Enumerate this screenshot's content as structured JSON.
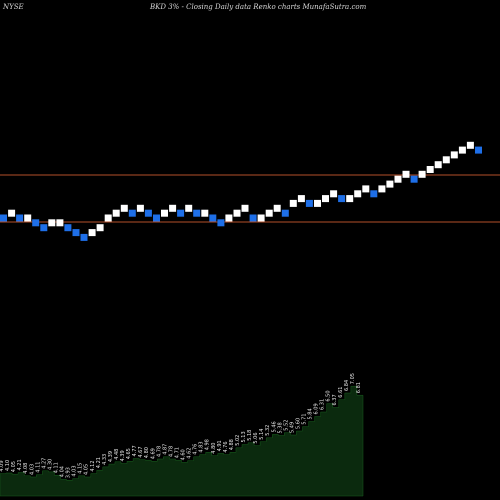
{
  "header": {
    "exchange": "NYSE",
    "title": "BKD 3% -  Closing Daily data  Renko  charts MunafaSutra.com"
  },
  "chart_data": {
    "type": "renko",
    "title": "BKD 3% -  Closing Daily data  Renko  charts MunafaSutra.com",
    "colors": {
      "up": "#ffffff",
      "down": "#1e6fe8",
      "lines": "#b5502a",
      "volume": "#0b2a0e"
    },
    "bricks": [
      {
        "dir": "down",
        "level": 0
      },
      {
        "dir": "up",
        "level": 1
      },
      {
        "dir": "down",
        "level": 0
      },
      {
        "dir": "up",
        "level": 0
      },
      {
        "dir": "down",
        "level": -1
      },
      {
        "dir": "down",
        "level": -2
      },
      {
        "dir": "up",
        "level": -1
      },
      {
        "dir": "up",
        "level": -1
      },
      {
        "dir": "down",
        "level": -2
      },
      {
        "dir": "down",
        "level": -3
      },
      {
        "dir": "down",
        "level": -4
      },
      {
        "dir": "up",
        "level": -3
      },
      {
        "dir": "up",
        "level": -2
      },
      {
        "dir": "up",
        "level": 0
      },
      {
        "dir": "up",
        "level": 1
      },
      {
        "dir": "up",
        "level": 2
      },
      {
        "dir": "down",
        "level": 1
      },
      {
        "dir": "up",
        "level": 2
      },
      {
        "dir": "down",
        "level": 1
      },
      {
        "dir": "down",
        "level": 0
      },
      {
        "dir": "up",
        "level": 1
      },
      {
        "dir": "up",
        "level": 2
      },
      {
        "dir": "down",
        "level": 1
      },
      {
        "dir": "up",
        "level": 2
      },
      {
        "dir": "down",
        "level": 1
      },
      {
        "dir": "up",
        "level": 1
      },
      {
        "dir": "down",
        "level": 0
      },
      {
        "dir": "down",
        "level": -1
      },
      {
        "dir": "up",
        "level": 0
      },
      {
        "dir": "up",
        "level": 1
      },
      {
        "dir": "up",
        "level": 2
      },
      {
        "dir": "down",
        "level": 0
      },
      {
        "dir": "up",
        "level": 0
      },
      {
        "dir": "up",
        "level": 1
      },
      {
        "dir": "up",
        "level": 2
      },
      {
        "dir": "down",
        "level": 1
      },
      {
        "dir": "up",
        "level": 3
      },
      {
        "dir": "up",
        "level": 4
      },
      {
        "dir": "down",
        "level": 3
      },
      {
        "dir": "up",
        "level": 3
      },
      {
        "dir": "up",
        "level": 4
      },
      {
        "dir": "up",
        "level": 5
      },
      {
        "dir": "down",
        "level": 4
      },
      {
        "dir": "up",
        "level": 4
      },
      {
        "dir": "up",
        "level": 5
      },
      {
        "dir": "up",
        "level": 6
      },
      {
        "dir": "down",
        "level": 5
      },
      {
        "dir": "up",
        "level": 6
      },
      {
        "dir": "up",
        "level": 7
      },
      {
        "dir": "up",
        "level": 8
      },
      {
        "dir": "up",
        "level": 9
      },
      {
        "dir": "down",
        "level": 8
      },
      {
        "dir": "up",
        "level": 9
      },
      {
        "dir": "up",
        "level": 10
      },
      {
        "dir": "up",
        "level": 11
      },
      {
        "dir": "up",
        "level": 12
      },
      {
        "dir": "up",
        "level": 13
      },
      {
        "dir": "up",
        "level": 14
      },
      {
        "dir": "up",
        "level": 15
      },
      {
        "dir": "down",
        "level": 14
      }
    ],
    "lines": [
      {
        "level": 11
      },
      {
        "level": 0
      }
    ],
    "volume": [
      {
        "label": "4.09",
        "value": 40
      },
      {
        "label": "4.10",
        "value": 41
      },
      {
        "label": "4.05",
        "value": 39
      },
      {
        "label": "4.21",
        "value": 42
      },
      {
        "label": "4.08",
        "value": 36
      },
      {
        "label": "4.03",
        "value": 34
      },
      {
        "label": "4.11",
        "value": 38
      },
      {
        "label": "4.27",
        "value": 45
      },
      {
        "label": "4.30",
        "value": 43
      },
      {
        "label": "4.11",
        "value": 37
      },
      {
        "label": "4.04",
        "value": 30
      },
      {
        "label": "3.93",
        "value": 28
      },
      {
        "label": "4.03",
        "value": 31
      },
      {
        "label": "4.15",
        "value": 36
      },
      {
        "label": "4.05",
        "value": 34
      },
      {
        "label": "4.12",
        "value": 40
      },
      {
        "label": "4.21",
        "value": 46
      },
      {
        "label": "4.33",
        "value": 52
      },
      {
        "label": "4.39",
        "value": 57
      },
      {
        "label": "4.48",
        "value": 61
      },
      {
        "label": "4.39",
        "value": 58
      },
      {
        "label": "4.65",
        "value": 62
      },
      {
        "label": "4.77",
        "value": 67
      },
      {
        "label": "4.67",
        "value": 65
      },
      {
        "label": "4.80",
        "value": 64
      },
      {
        "label": "4.69",
        "value": 62
      },
      {
        "label": "4.78",
        "value": 66
      },
      {
        "label": "4.87",
        "value": 70
      },
      {
        "label": "4.78",
        "value": 66
      },
      {
        "label": "4.71",
        "value": 64
      },
      {
        "label": "4.60",
        "value": 60
      },
      {
        "label": "4.62",
        "value": 63
      },
      {
        "label": "4.76",
        "value": 70
      },
      {
        "label": "4.83",
        "value": 74
      },
      {
        "label": "4.98",
        "value": 78
      },
      {
        "label": "4.80",
        "value": 72
      },
      {
        "label": "4.91",
        "value": 76
      },
      {
        "label": "4.76",
        "value": 74
      },
      {
        "label": "4.88",
        "value": 78
      },
      {
        "label": "5.02",
        "value": 86
      },
      {
        "label": "5.13",
        "value": 92
      },
      {
        "label": "5.18",
        "value": 95
      },
      {
        "label": "5.06",
        "value": 90
      },
      {
        "label": "5.14",
        "value": 97
      },
      {
        "label": "5.32",
        "value": 104
      },
      {
        "label": "5.46",
        "value": 110
      },
      {
        "label": "5.38",
        "value": 108
      },
      {
        "label": "5.52",
        "value": 113
      },
      {
        "label": "5.49",
        "value": 109
      },
      {
        "label": "5.60",
        "value": 116
      },
      {
        "label": "5.71",
        "value": 124
      },
      {
        "label": "5.84",
        "value": 133
      },
      {
        "label": "6.09",
        "value": 142
      },
      {
        "label": "6.31",
        "value": 150
      },
      {
        "label": "6.50",
        "value": 165
      },
      {
        "label": "6.37",
        "value": 158
      },
      {
        "label": "6.61",
        "value": 172
      },
      {
        "label": "6.84",
        "value": 184
      },
      {
        "label": "7.05",
        "value": 196
      },
      {
        "label": "6.81",
        "value": 180
      }
    ]
  }
}
